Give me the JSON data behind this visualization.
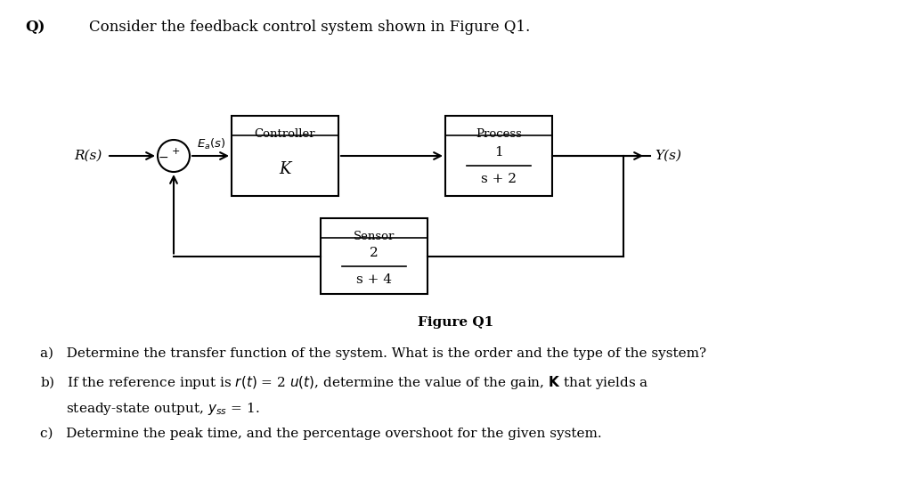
{
  "bg_color": "#ffffff",
  "controller_label": "Controller",
  "controller_tf": "K",
  "process_label": "Process",
  "process_tf_num": "1",
  "process_tf_den": "s + 2",
  "sensor_label": "Sensor",
  "sensor_tf_num": "2",
  "sensor_tf_den": "s + 4",
  "Rs_label": "R(s)",
  "Ea_label": "E_a(s)",
  "Ys_label": "Y(s)",
  "figure_label": "Figure Q1",
  "header_Q": "Q)",
  "header_text": "Consider the feedback control system shown in Figure Q1.",
  "qa": "a)   Determine the transfer function of the system. What is the order and the type of the system?",
  "qb": "b)   If the reference input is r(t) = 2 u(t), determine the value of the gain, K that yields a",
  "qb2": "      steady-state output, yₛₛ = 1.",
  "qc": "c)   Determine the peak time, and the percentage overshoot for the given system."
}
